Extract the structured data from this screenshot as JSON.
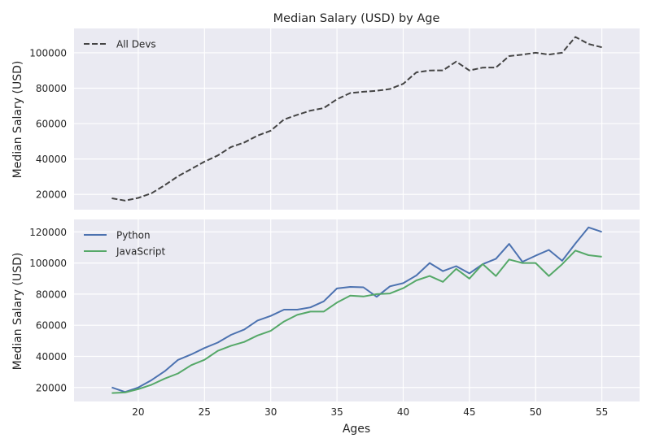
{
  "chart_data": [
    {
      "type": "line",
      "title": "Median Salary (USD) by Age",
      "xlabel": "",
      "ylabel": "Median Salary (USD)",
      "x": [
        18,
        19,
        20,
        21,
        22,
        23,
        24,
        25,
        26,
        27,
        28,
        29,
        30,
        31,
        32,
        33,
        34,
        35,
        36,
        37,
        38,
        39,
        40,
        41,
        42,
        43,
        44,
        45,
        46,
        47,
        48,
        49,
        50,
        51,
        52,
        53,
        54,
        55
      ],
      "xlim": [
        15.15,
        57.85
      ],
      "ylim": [
        11350,
        113750
      ],
      "xticks": [
        20,
        25,
        30,
        35,
        40,
        45,
        50,
        55
      ],
      "yticks": [
        20000,
        40000,
        60000,
        80000,
        100000
      ],
      "grid": true,
      "legend": "upper-left",
      "series": [
        {
          "name": "All Devs",
          "color": "#444444",
          "style": "dashed",
          "values": [
            17784,
            16500,
            18012,
            20628,
            25206,
            30252,
            34368,
            38496,
            42000,
            46752,
            49320,
            53200,
            56000,
            62316,
            64928,
            67317,
            68748,
            73752,
            77232,
            78000,
            78508,
            79536,
            82488,
            88935,
            90000,
            90056,
            95000,
            90000,
            91633,
            91660,
            98150,
            98964,
            100000,
            98988,
            100000,
            108923,
            105000,
            103117
          ]
        }
      ]
    },
    {
      "type": "line",
      "title": "",
      "xlabel": "Ages",
      "ylabel": "Median Salary (USD)",
      "x": [
        18,
        19,
        20,
        21,
        22,
        23,
        24,
        25,
        26,
        27,
        28,
        29,
        30,
        31,
        32,
        33,
        34,
        35,
        36,
        37,
        38,
        39,
        40,
        41,
        42,
        43,
        44,
        45,
        46,
        47,
        48,
        49,
        50,
        51,
        52,
        53,
        54,
        55
      ],
      "xlim": [
        15.15,
        57.85
      ],
      "ylim": [
        11000,
        128000
      ],
      "xticks": [
        20,
        25,
        30,
        35,
        40,
        45,
        50,
        55
      ],
      "yticks": [
        20000,
        40000,
        60000,
        80000,
        100000,
        120000
      ],
      "grid": true,
      "legend": "upper-left",
      "series": [
        {
          "name": "Python",
          "color": "#4c72b0",
          "style": "solid",
          "values": [
            20046,
            17100,
            20000,
            24744,
            30500,
            37732,
            41247,
            45372,
            48876,
            53850,
            57287,
            63016,
            65998,
            70003,
            70000,
            71496,
            75370,
            83640,
            84666,
            84392,
            78254,
            85000,
            87038,
            91991,
            100000,
            94796,
            97962,
            93302,
            99240,
            102736,
            112285,
            100771,
            104708,
            108423,
            101407,
            112542,
            122870,
            120000
          ]
        },
        {
          "name": "JavaScript",
          "color": "#55a868",
          "style": "solid",
          "values": [
            16446,
            16791,
            18942,
            21780,
            25704,
            29000,
            34372,
            37810,
            43515,
            46823,
            49293,
            53437,
            56373,
            62375,
            66674,
            68745,
            68746,
            74583,
            79000,
            78508,
            79996,
            80403,
            83820,
            88833,
            91660,
            87892,
            96243,
            90000,
            99313,
            91660,
            102264,
            100000,
            100000,
            91660,
            99240,
            108000,
            105000,
            104000
          ]
        }
      ]
    }
  ]
}
